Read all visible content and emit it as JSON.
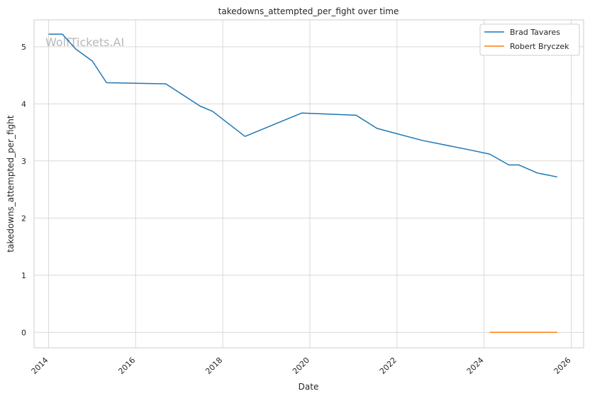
{
  "watermark": "WolfTickets.AI",
  "chart_data": {
    "type": "line",
    "title": "takedowns_attempted_per_fight over time",
    "xlabel": "Date",
    "ylabel": "takedowns_attempted_per_fight",
    "xlim": [
      "2013-09-01",
      "2026-04-15"
    ],
    "ylim": [
      -0.27,
      5.47
    ],
    "x_ticks": [
      "2014",
      "2016",
      "2018",
      "2020",
      "2022",
      "2024",
      "2026"
    ],
    "y_ticks": [
      "0",
      "1",
      "2",
      "3",
      "4",
      "5"
    ],
    "grid": true,
    "legend_position": "top-right",
    "series": [
      {
        "name": "Brad Tavares",
        "color": "#1f77b4",
        "points": [
          [
            "2014-01-01",
            5.22
          ],
          [
            "2014-04-26",
            5.22
          ],
          [
            "2014-08-16",
            4.96
          ],
          [
            "2015-01-03",
            4.75
          ],
          [
            "2015-05-02",
            4.37
          ],
          [
            "2016-09-10",
            4.35
          ],
          [
            "2017-06-25",
            3.96
          ],
          [
            "2017-10-07",
            3.87
          ],
          [
            "2018-07-06",
            3.43
          ],
          [
            "2019-10-26",
            3.84
          ],
          [
            "2021-01-23",
            3.8
          ],
          [
            "2021-07-17",
            3.57
          ],
          [
            "2022-07-30",
            3.36
          ],
          [
            "2023-08-19",
            3.2
          ],
          [
            "2024-02-17",
            3.12
          ],
          [
            "2024-07-27",
            2.93
          ],
          [
            "2024-10-19",
            2.93
          ],
          [
            "2025-03-22",
            2.79
          ],
          [
            "2025-09-06",
            2.72
          ]
        ]
      },
      {
        "name": "Robert Bryczek",
        "color": "#ff7f0e",
        "points": [
          [
            "2024-02-17",
            0.0
          ],
          [
            "2025-09-06",
            0.0
          ]
        ]
      }
    ]
  }
}
